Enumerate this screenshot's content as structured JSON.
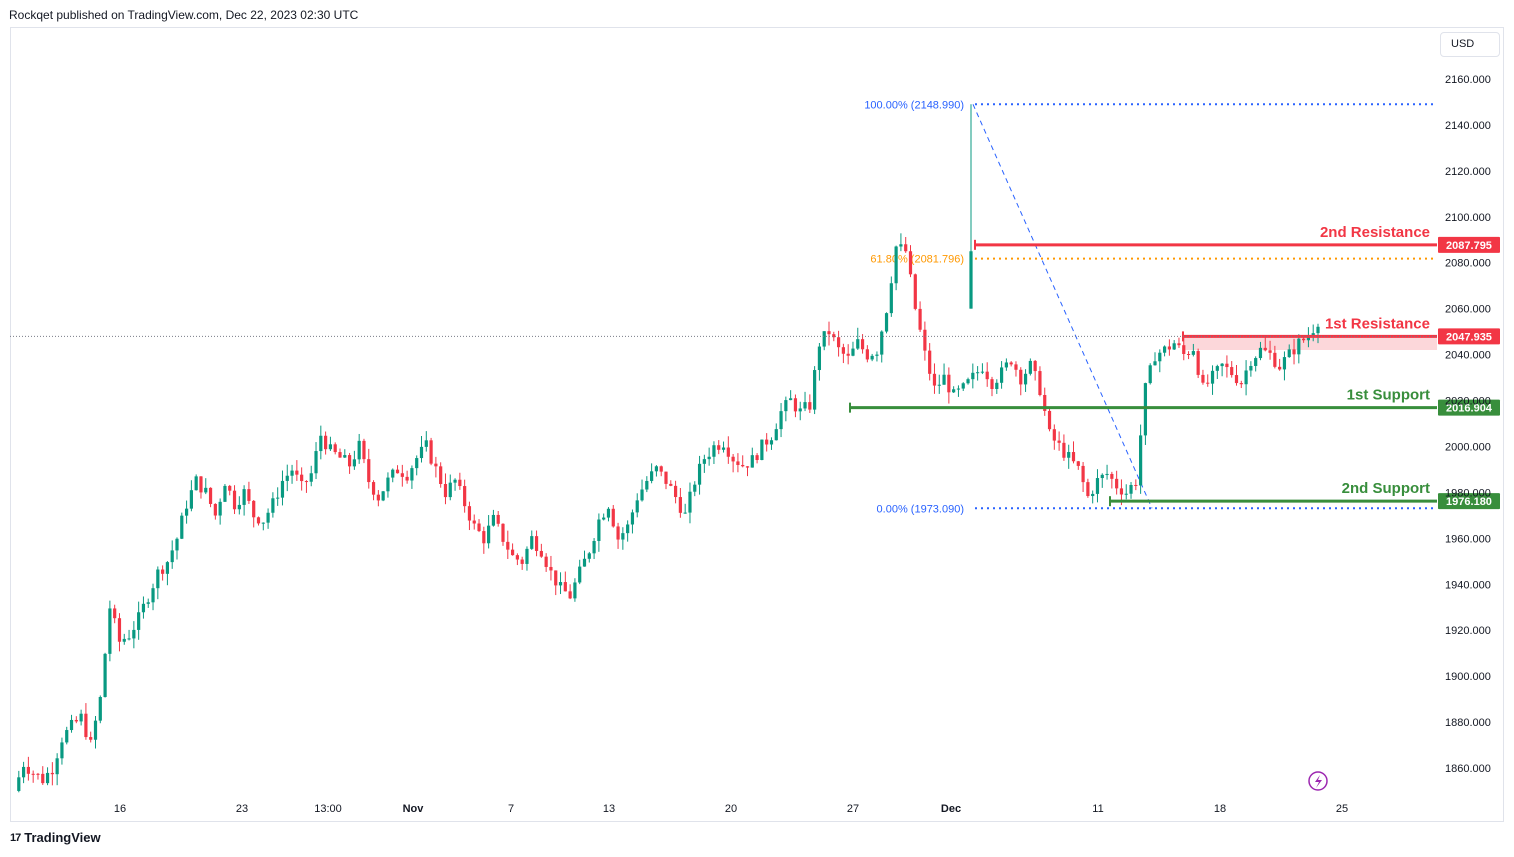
{
  "header": {
    "published_text": "Rockqet published on TradingView.com, Dec 22, 2023 02:30 UTC"
  },
  "footer": {
    "brand": "TradingView",
    "brand_icon": "17"
  },
  "price_scale": {
    "currency": "USD"
  },
  "colors": {
    "up": "#089981",
    "down": "#f23645",
    "resistance": "#f23645",
    "support": "#388e3c",
    "fib_100": "#2962ff",
    "fib_618": "#ff9800",
    "dashed_trend": "#2962ff"
  },
  "chart_data": {
    "type": "candlestick",
    "title": "",
    "xlabel": "",
    "ylabel": "",
    "ylim": [
      1843,
      2177
    ],
    "y_ticks": [
      1860,
      1880,
      1900,
      1920,
      1940,
      1960,
      1980,
      2000,
      2020,
      2040,
      2060,
      2080,
      2100,
      2120,
      2140,
      2160
    ],
    "y_tick_labels": [
      "1860.000",
      "1880.000",
      "1900.000",
      "1920.000",
      "1940.000",
      "1960.000",
      "1980.000",
      "2000.000",
      "2020.000",
      "2040.000",
      "2060.000",
      "2080.000",
      "2100.000",
      "2120.000",
      "2140.000",
      "2160.000"
    ],
    "x_ticks": [
      {
        "label": "16",
        "bold": false
      },
      {
        "label": "23",
        "bold": false
      },
      {
        "label": "13:00",
        "bold": false
      },
      {
        "label": "Nov",
        "bold": true
      },
      {
        "label": "7",
        "bold": false
      },
      {
        "label": "13",
        "bold": false
      },
      {
        "label": "20",
        "bold": false
      },
      {
        "label": "27",
        "bold": false
      },
      {
        "label": "Dec",
        "bold": true
      },
      {
        "label": "11",
        "bold": false
      },
      {
        "label": "18",
        "bold": false
      },
      {
        "label": "25",
        "bold": false
      }
    ],
    "price_path": [
      1850,
      1862,
      1858,
      1855,
      1860,
      1873,
      1878,
      1882,
      1870,
      1890,
      1930,
      1915,
      1918,
      1925,
      1935,
      1945,
      1950,
      1960,
      1975,
      1985,
      1980,
      1970,
      1985,
      1975,
      1980,
      1970,
      1968,
      1975,
      1985,
      1990,
      1982,
      1988,
      2005,
      1998,
      1995,
      1992,
      2000,
      1985,
      1978,
      1985,
      1990,
      1988,
      1995,
      2000,
      1990,
      1980,
      1985,
      1975,
      1965,
      1960,
      1968,
      1960,
      1952,
      1950,
      1960,
      1955,
      1945,
      1938,
      1935,
      1945,
      1955,
      1968,
      1975,
      1960,
      1965,
      1978,
      1985,
      1990,
      1985,
      1978,
      1970,
      1985,
      1995,
      2000,
      2002,
      1995,
      1992,
      1994,
      2000,
      2005,
      2015,
      2020,
      2015,
      2018,
      2045,
      2050,
      2042,
      2038,
      2045,
      2040,
      2042,
      2060,
      2087,
      2085,
      2060,
      2040,
      2025,
      2030,
      2022,
      2025,
      2030,
      2035,
      2028,
      2032,
      2038,
      2030,
      2035,
      2025,
      2005,
      2000,
      1995,
      1990,
      1978,
      1985,
      1988,
      1983,
      1980,
      1985,
      2025,
      2040,
      2042,
      2045,
      2040,
      2043,
      2025,
      2030,
      2035,
      2032,
      2028,
      2038,
      2042,
      2040,
      2035,
      2040,
      2045,
      2048,
      2055
    ],
    "dec_peak_high": 2148.99,
    "current_price": 2047.935,
    "levels": [
      {
        "name": "2nd Resistance",
        "value": 2087.795,
        "value_label": "2087.795",
        "kind": "resistance"
      },
      {
        "name": "1st Resistance",
        "value": 2047.935,
        "value_label": "2047.935",
        "kind": "resistance_zone",
        "zone_low": 2042
      },
      {
        "name": "1st Support",
        "value": 2016.904,
        "value_label": "2016.904",
        "kind": "support"
      },
      {
        "name": "2nd Support",
        "value": 1976.18,
        "value_label": "1976.180",
        "kind": "support"
      }
    ],
    "fibonacci": [
      {
        "label": "100.00% (2148.990)",
        "value": 2148.99
      },
      {
        "label": "61.80% (2081.796)",
        "value": 2081.796
      },
      {
        "label": "0.00% (1973.090)",
        "value": 1973.09
      }
    ]
  }
}
